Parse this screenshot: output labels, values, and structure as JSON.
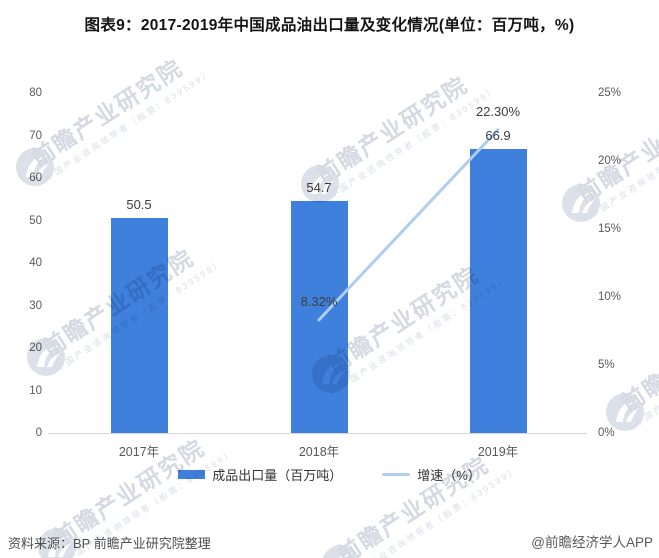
{
  "title": "图表9：2017-2019年中国成品油出口量及变化情况(单位：百万吨，%)",
  "chart_data": {
    "type": "bar",
    "subtype": "bar-line-combo",
    "categories": [
      "2017年",
      "2018年",
      "2019年"
    ],
    "series": [
      {
        "name": "成品出口量（百万吨）",
        "type": "bar",
        "axis": "left",
        "values": [
          50.5,
          54.7,
          66.9
        ],
        "labels": [
          "50.5",
          "54.7",
          "66.9"
        ],
        "color": "#3E80DC"
      },
      {
        "name": "增速（%）",
        "type": "line",
        "axis": "right",
        "values": [
          null,
          8.32,
          22.3
        ],
        "labels": [
          "",
          "8.32%",
          "22.30%"
        ],
        "color": "#AECDF1"
      }
    ],
    "left_axis": {
      "min": 0,
      "max": 80,
      "step": 10,
      "ticks": [
        "0",
        "10",
        "20",
        "30",
        "40",
        "50",
        "60",
        "70",
        "80"
      ]
    },
    "right_axis": {
      "min": 0,
      "max": 25,
      "step": 5,
      "ticks": [
        "0%",
        "5%",
        "10%",
        "15%",
        "20%",
        "25%"
      ]
    },
    "grid": false,
    "legend_position": "bottom",
    "title": "图表9：2017-2019年中国成品油出口量及变化情况(单位：百万吨，%)"
  },
  "legend": {
    "bar_label": "成品出口量（百万吨）",
    "line_label": "增速（%）"
  },
  "footer": {
    "source": "资料来源：BP 前瞻产业研究院整理",
    "credit": "@前瞻经济学人APP"
  },
  "watermark": {
    "text": "前瞻产业研究院",
    "subtext": "中国产业咨询领导者（股票：839599）"
  },
  "colors": {
    "bar": "#3E80DC",
    "line": "#AECDF1",
    "axis_line": "#D6D6D6",
    "tick_text": "#595959",
    "value_label": "#3D3D3D",
    "title_text": "#141414",
    "watermark": "#D5DAE2"
  }
}
